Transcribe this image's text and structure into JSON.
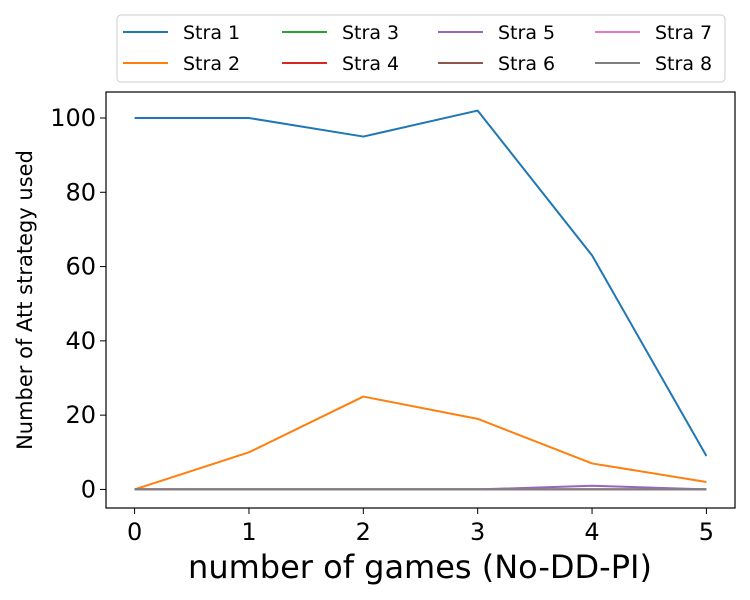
{
  "chart_data": {
    "type": "line",
    "xlabel": "number of games (No-DD-PI)",
    "ylabel": "Number of Att strategy used",
    "x": [
      0,
      1,
      2,
      3,
      4,
      5
    ],
    "xticks": [
      "0",
      "1",
      "2",
      "3",
      "4",
      "5"
    ],
    "yticks": [
      "0",
      "20",
      "40",
      "60",
      "80",
      "100"
    ],
    "ylim": [
      -5,
      107
    ],
    "xlim": [
      -0.25,
      5.25
    ],
    "grid": false,
    "legend_placement": "top, outside plot, 4 columns",
    "series": [
      {
        "name": "Stra 1",
        "color": "#1f77b4",
        "values": [
          100,
          100,
          95,
          102,
          63,
          9
        ]
      },
      {
        "name": "Stra 2",
        "color": "#ff7f0e",
        "values": [
          0,
          10,
          25,
          19,
          7,
          2
        ]
      },
      {
        "name": "Stra 3",
        "color": "#2ca02c",
        "values": [
          0,
          0,
          0,
          0,
          0,
          0
        ]
      },
      {
        "name": "Stra 4",
        "color": "#d62728",
        "values": [
          0,
          0,
          0,
          0,
          0,
          0
        ]
      },
      {
        "name": "Stra 5",
        "color": "#9467bd",
        "values": [
          0,
          0,
          0,
          0,
          1,
          0
        ]
      },
      {
        "name": "Stra 6",
        "color": "#8c564b",
        "values": [
          0,
          0,
          0,
          0,
          0,
          0
        ]
      },
      {
        "name": "Stra 7",
        "color": "#e377c2",
        "values": [
          0,
          0,
          0,
          0,
          0,
          0
        ]
      },
      {
        "name": "Stra 8",
        "color": "#7f7f7f",
        "values": [
          0,
          0,
          0,
          0,
          0,
          0
        ]
      }
    ]
  }
}
